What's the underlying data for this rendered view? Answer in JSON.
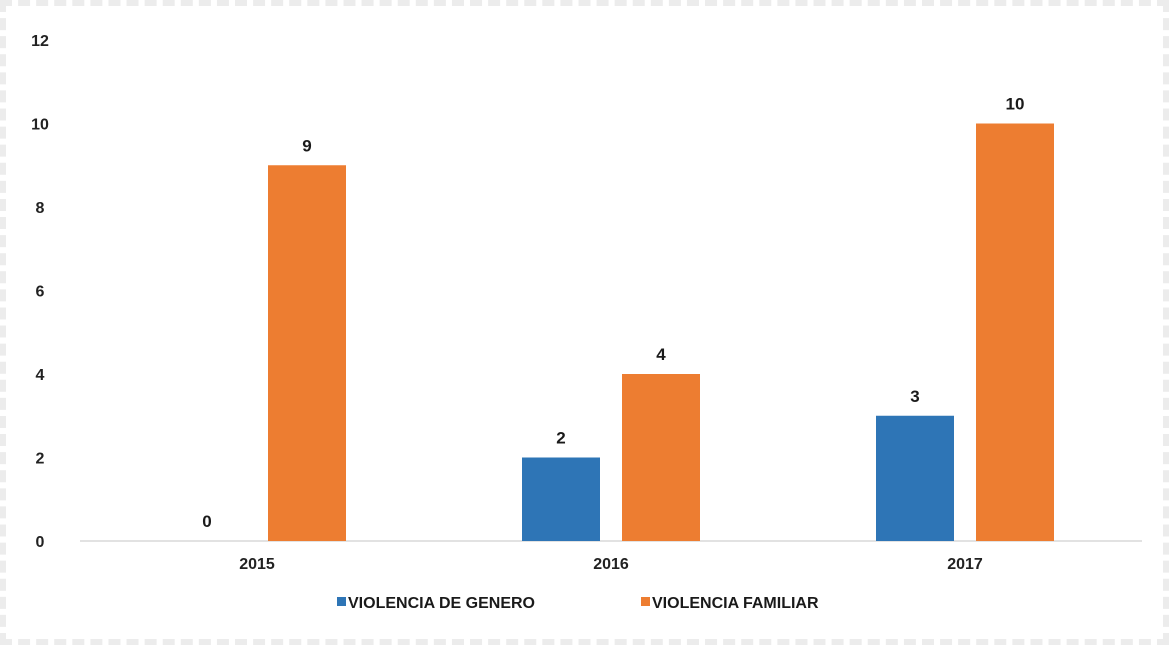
{
  "chart_data": {
    "type": "bar",
    "categories": [
      "2015",
      "2016",
      "2017"
    ],
    "series": [
      {
        "name": "VIOLENCIA DE GENERO",
        "values": [
          0,
          2,
          3
        ],
        "color": "#2E75B6"
      },
      {
        "name": "VIOLENCIA FAMILIAR",
        "values": [
          9,
          4,
          10
        ],
        "color": "#ED7D31"
      }
    ],
    "ylim": [
      0,
      12
    ],
    "yticks": [
      0,
      2,
      4,
      6,
      8,
      10,
      12
    ],
    "grid": false,
    "legend_position": "bottom",
    "axis_color": "#d9d9d9",
    "text_color": "#1a1a1a"
  }
}
